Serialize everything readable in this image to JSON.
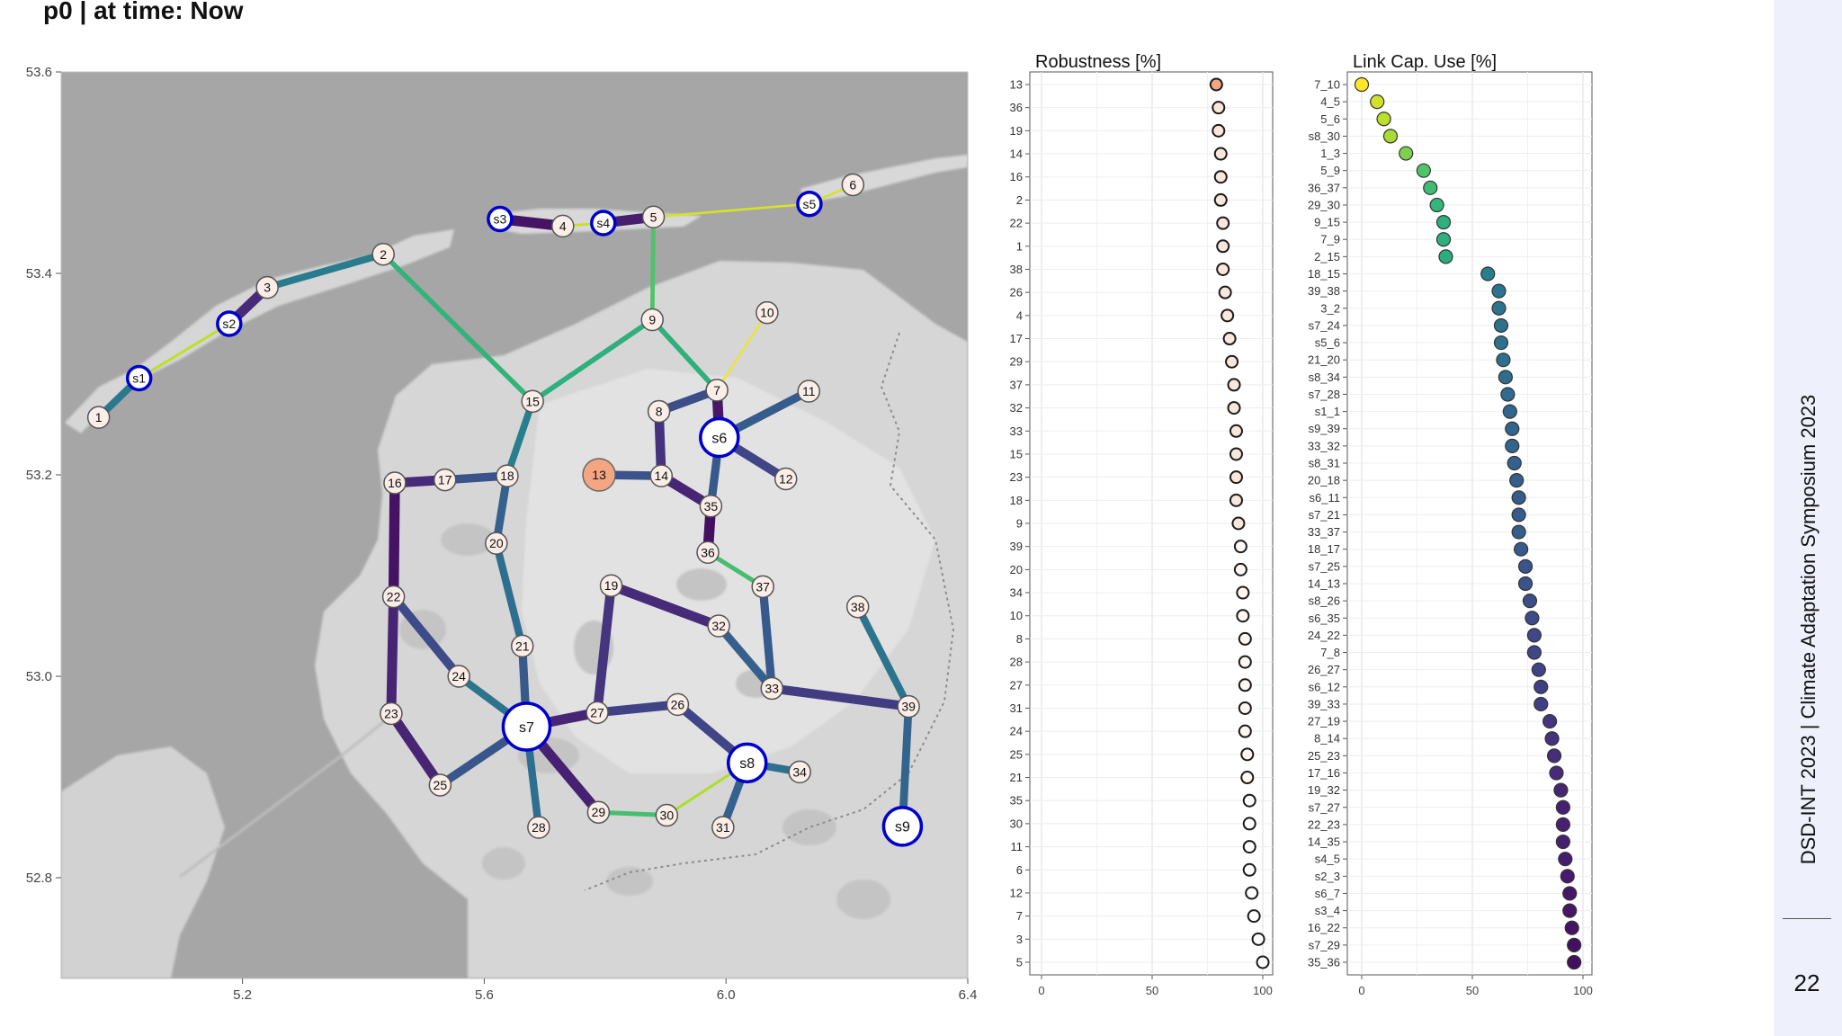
{
  "page": {
    "title": "p0 | at time: Now",
    "footer_text": "DSD-INT 2023 | Climate Adaptation Symposium 2023",
    "slide_number": "22"
  },
  "colors": {
    "water": "#a6a6a6",
    "land": "#d9d9d9",
    "station_stroke": "#0000cc",
    "highlight_node": "#f4a582"
  },
  "chart_data": [
    {
      "type": "network-map",
      "xlim": [
        4.9,
        6.4
      ],
      "ylim": [
        52.7,
        53.6
      ],
      "x_ticks": [
        5.2,
        5.6,
        6.0,
        6.4
      ],
      "y_ticks": [
        53.6,
        53.4,
        53.2,
        53.0,
        52.8
      ],
      "x_tick_labels": [
        "5.2",
        "5.6",
        "6.0",
        "6.4"
      ],
      "y_tick_labels": [
        "53.6",
        "53.4",
        "53.2",
        "53.0",
        "52.8"
      ],
      "nodes": [
        {
          "id": "1",
          "label": "1",
          "x": 4.962,
          "y": 53.257,
          "kind": "node"
        },
        {
          "id": "s1",
          "label": "s1",
          "x": 5.029,
          "y": 53.296,
          "kind": "station"
        },
        {
          "id": "s2",
          "label": "s2",
          "x": 5.178,
          "y": 53.35,
          "kind": "station"
        },
        {
          "id": "3",
          "label": "3",
          "x": 5.241,
          "y": 53.386,
          "kind": "node"
        },
        {
          "id": "2",
          "label": "2",
          "x": 5.433,
          "y": 53.419,
          "kind": "node"
        },
        {
          "id": "s3",
          "label": "s3",
          "x": 5.626,
          "y": 53.454,
          "kind": "station"
        },
        {
          "id": "4",
          "label": "4",
          "x": 5.73,
          "y": 53.447,
          "kind": "node"
        },
        {
          "id": "s4",
          "label": "s4",
          "x": 5.797,
          "y": 53.45,
          "kind": "station"
        },
        {
          "id": "5",
          "label": "5",
          "x": 5.88,
          "y": 53.456,
          "kind": "node"
        },
        {
          "id": "s5",
          "label": "s5",
          "x": 6.138,
          "y": 53.469,
          "kind": "station"
        },
        {
          "id": "6",
          "label": "6",
          "x": 6.21,
          "y": 53.488,
          "kind": "node"
        },
        {
          "id": "9",
          "label": "9",
          "x": 5.878,
          "y": 53.354,
          "kind": "node"
        },
        {
          "id": "10",
          "label": "10",
          "x": 6.068,
          "y": 53.361,
          "kind": "node"
        },
        {
          "id": "15",
          "label": "15",
          "x": 5.68,
          "y": 53.273,
          "kind": "node"
        },
        {
          "id": "7",
          "label": "7",
          "x": 5.985,
          "y": 53.284,
          "kind": "node"
        },
        {
          "id": "8",
          "label": "8",
          "x": 5.889,
          "y": 53.263,
          "kind": "node"
        },
        {
          "id": "11",
          "label": "11",
          "x": 6.137,
          "y": 53.283,
          "kind": "node"
        },
        {
          "id": "s6",
          "label": "s6",
          "x": 5.989,
          "y": 53.237,
          "kind": "station"
        },
        {
          "id": "12",
          "label": "12",
          "x": 6.099,
          "y": 53.196,
          "kind": "node"
        },
        {
          "id": "13",
          "label": "13",
          "x": 5.79,
          "y": 53.2,
          "kind": "highlight"
        },
        {
          "id": "14",
          "label": "14",
          "x": 5.893,
          "y": 53.199,
          "kind": "node"
        },
        {
          "id": "35",
          "label": "35",
          "x": 5.975,
          "y": 53.169,
          "kind": "node"
        },
        {
          "id": "36",
          "label": "36",
          "x": 5.97,
          "y": 53.123,
          "kind": "node"
        },
        {
          "id": "16",
          "label": "16",
          "x": 5.452,
          "y": 53.192,
          "kind": "node"
        },
        {
          "id": "17",
          "label": "17",
          "x": 5.535,
          "y": 53.195,
          "kind": "node"
        },
        {
          "id": "18",
          "label": "18",
          "x": 5.638,
          "y": 53.199,
          "kind": "node"
        },
        {
          "id": "20",
          "label": "20",
          "x": 5.62,
          "y": 53.132,
          "kind": "node"
        },
        {
          "id": "37",
          "label": "37",
          "x": 6.061,
          "y": 53.089,
          "kind": "node"
        },
        {
          "id": "38",
          "label": "38",
          "x": 6.218,
          "y": 53.069,
          "kind": "node"
        },
        {
          "id": "19",
          "label": "19",
          "x": 5.81,
          "y": 53.09,
          "kind": "node"
        },
        {
          "id": "22",
          "label": "22",
          "x": 5.45,
          "y": 53.079,
          "kind": "node"
        },
        {
          "id": "32",
          "label": "32",
          "x": 5.988,
          "y": 53.05,
          "kind": "node"
        },
        {
          "id": "21",
          "label": "21",
          "x": 5.663,
          "y": 53.03,
          "kind": "node"
        },
        {
          "id": "24",
          "label": "24",
          "x": 5.558,
          "y": 53.0,
          "kind": "node"
        },
        {
          "id": "33",
          "label": "33",
          "x": 6.076,
          "y": 52.988,
          "kind": "node"
        },
        {
          "id": "39",
          "label": "39",
          "x": 6.302,
          "y": 52.97,
          "kind": "node"
        },
        {
          "id": "23",
          "label": "23",
          "x": 5.446,
          "y": 52.963,
          "kind": "node"
        },
        {
          "id": "s7",
          "label": "s7",
          "x": 5.67,
          "y": 52.95,
          "kind": "station"
        },
        {
          "id": "27",
          "label": "27",
          "x": 5.787,
          "y": 52.964,
          "kind": "node"
        },
        {
          "id": "26",
          "label": "26",
          "x": 5.92,
          "y": 52.972,
          "kind": "node"
        },
        {
          "id": "s8",
          "label": "s8",
          "x": 6.035,
          "y": 52.914,
          "kind": "station"
        },
        {
          "id": "34",
          "label": "34",
          "x": 6.122,
          "y": 52.905,
          "kind": "node"
        },
        {
          "id": "25",
          "label": "25",
          "x": 5.527,
          "y": 52.892,
          "kind": "node"
        },
        {
          "id": "29",
          "label": "29",
          "x": 5.789,
          "y": 52.865,
          "kind": "node"
        },
        {
          "id": "30",
          "label": "30",
          "x": 5.902,
          "y": 52.862,
          "kind": "node"
        },
        {
          "id": "s9",
          "label": "s9",
          "x": 6.292,
          "y": 52.851,
          "kind": "station"
        },
        {
          "id": "28",
          "label": "28",
          "x": 5.69,
          "y": 52.85,
          "kind": "node"
        },
        {
          "id": "31",
          "label": "31",
          "x": 5.995,
          "y": 52.85,
          "kind": "node"
        }
      ],
      "links": [
        {
          "from": "1",
          "to": "s1",
          "use": 60
        },
        {
          "from": "s1",
          "to": "s2",
          "use": 10
        },
        {
          "from": "s2",
          "to": "3",
          "use": 88
        },
        {
          "from": "3",
          "to": "2",
          "use": 58
        },
        {
          "from": "2",
          "to": "15",
          "use": 35
        },
        {
          "from": "s3",
          "to": "4",
          "use": 95
        },
        {
          "from": "4",
          "to": "s4",
          "use": 8
        },
        {
          "from": "s4",
          "to": "5",
          "use": 92
        },
        {
          "from": "5",
          "to": "s5",
          "use": 6
        },
        {
          "from": "s5",
          "to": "6",
          "use": 6
        },
        {
          "from": "5",
          "to": "9",
          "use": 28
        },
        {
          "from": "9",
          "to": "15",
          "use": 37
        },
        {
          "from": "9",
          "to": "7",
          "use": 37
        },
        {
          "from": "7",
          "to": "10",
          "use": 2
        },
        {
          "from": "7",
          "to": "8",
          "use": 76
        },
        {
          "from": "7",
          "to": "s6",
          "use": 94
        },
        {
          "from": "s6",
          "to": "11",
          "use": 71
        },
        {
          "from": "s6",
          "to": "12",
          "use": 79
        },
        {
          "from": "s6",
          "to": "35",
          "use": 72
        },
        {
          "from": "8",
          "to": "14",
          "use": 86
        },
        {
          "from": "13",
          "to": "14",
          "use": 74
        },
        {
          "from": "14",
          "to": "35",
          "use": 90
        },
        {
          "from": "35",
          "to": "36",
          "use": 96
        },
        {
          "from": "36",
          "to": "37",
          "use": 30
        },
        {
          "from": "37",
          "to": "33",
          "use": 72
        },
        {
          "from": "15",
          "to": "18",
          "use": 57
        },
        {
          "from": "16",
          "to": "17",
          "use": 88
        },
        {
          "from": "17",
          "to": "18",
          "use": 74
        },
        {
          "from": "18",
          "to": "20",
          "use": 69
        },
        {
          "from": "20",
          "to": "21",
          "use": 64
        },
        {
          "from": "21",
          "to": "s7",
          "use": 72
        },
        {
          "from": "16",
          "to": "22",
          "use": 95
        },
        {
          "from": "22",
          "to": "23",
          "use": 90
        },
        {
          "from": "22",
          "to": "24",
          "use": 77
        },
        {
          "from": "24",
          "to": "s7",
          "use": 62
        },
        {
          "from": "23",
          "to": "25",
          "use": 90
        },
        {
          "from": "25",
          "to": "s7",
          "use": 73
        },
        {
          "from": "s7",
          "to": "27",
          "use": 90
        },
        {
          "from": "s7",
          "to": "28",
          "use": 64
        },
        {
          "from": "s7",
          "to": "29",
          "use": 91
        },
        {
          "from": "27",
          "to": "19",
          "use": 85
        },
        {
          "from": "27",
          "to": "26",
          "use": 80
        },
        {
          "from": "19",
          "to": "32",
          "use": 88
        },
        {
          "from": "32",
          "to": "33",
          "use": 70
        },
        {
          "from": "33",
          "to": "39",
          "use": 82
        },
        {
          "from": "38",
          "to": "39",
          "use": 62
        },
        {
          "from": "39",
          "to": "s9",
          "use": 68
        },
        {
          "from": "26",
          "to": "s8",
          "use": 79
        },
        {
          "from": "s8",
          "to": "34",
          "use": 64
        },
        {
          "from": "s8",
          "to": "31",
          "use": 69
        },
        {
          "from": "s8",
          "to": "30",
          "use": 12
        },
        {
          "from": "29",
          "to": "30",
          "use": 30
        }
      ]
    },
    {
      "type": "scatter",
      "title": "Robustness [%]",
      "xlim": [
        0,
        100
      ],
      "x_ticks": [
        0,
        50,
        100
      ],
      "categories": [
        "13",
        "36",
        "19",
        "14",
        "16",
        "2",
        "22",
        "1",
        "38",
        "26",
        "4",
        "17",
        "29",
        "37",
        "32",
        "33",
        "15",
        "23",
        "18",
        "9",
        "39",
        "20",
        "34",
        "10",
        "8",
        "28",
        "27",
        "31",
        "24",
        "25",
        "21",
        "35",
        "30",
        "11",
        "6",
        "12",
        "7",
        "3",
        "5"
      ],
      "values": [
        79,
        80,
        80,
        81,
        81,
        81,
        82,
        82,
        82,
        83,
        84,
        85,
        86,
        87,
        87,
        88,
        88,
        88,
        88,
        89,
        90,
        90,
        91,
        91,
        92,
        92,
        92,
        92,
        92,
        93,
        93,
        94,
        94,
        94,
        94,
        95,
        96,
        98,
        100
      ],
      "point_fill": [
        "#f4a582",
        "#fbe6dc",
        "#fbe6dc",
        "#fbe6dc",
        "#fbe6dc",
        "#fbe6dc",
        "#fbe6dc",
        "#fbe6dc",
        "#fbe6dc",
        "#fbe6dc",
        "#fbe6dc",
        "#fbe6dc",
        "#fbe6dc",
        "#fbe6dc",
        "#fbe6dc",
        "#fbe6dc",
        "#fbe6dc",
        "#fbe6dc",
        "#fbe6dc",
        "#fbe6dc",
        "#fff7f3",
        "#fff7f3",
        "#fff7f3",
        "#fff7f3",
        "#fff7f3",
        "#fff7f3",
        "#fff7f3",
        "#fff7f3",
        "#fff7f3",
        "#fff7f3",
        "#fff7f3",
        "#ffffff",
        "#ffffff",
        "#ffffff",
        "#ffffff",
        "#ffffff",
        "#ffffff",
        "#ffffff",
        "#ffffff"
      ]
    },
    {
      "type": "scatter",
      "title": "Link Cap. Use [%]",
      "xlim": [
        0,
        100
      ],
      "x_ticks": [
        0,
        50,
        100
      ],
      "categories": [
        "7_10",
        "4_5",
        "5_6",
        "s8_30",
        "1_3",
        "5_9",
        "36_37",
        "29_30",
        "9_15",
        "7_9",
        "2_15",
        "18_15",
        "39_38",
        "3_2",
        "s7_24",
        "s5_6",
        "21_20",
        "s8_34",
        "s7_28",
        "s1_1",
        "s9_39",
        "33_32",
        "s8_31",
        "20_18",
        "s6_11",
        "s7_21",
        "33_37",
        "18_17",
        "s7_25",
        "14_13",
        "s8_26",
        "s6_35",
        "24_22",
        "7_8",
        "26_27",
        "s6_12",
        "39_33",
        "27_19",
        "8_14",
        "25_23",
        "17_16",
        "19_32",
        "s7_27",
        "22_23",
        "14_35",
        "s4_5",
        "s2_3",
        "s6_7",
        "s3_4",
        "16_22",
        "s7_29",
        "35_36"
      ],
      "values": [
        0,
        7,
        10,
        13,
        20,
        28,
        31,
        34,
        37,
        37,
        38,
        57,
        62,
        62,
        63,
        63,
        64,
        65,
        66,
        67,
        68,
        68,
        69,
        70,
        71,
        71,
        71,
        72,
        74,
        74,
        76,
        77,
        78,
        78,
        80,
        81,
        81,
        85,
        86,
        87,
        88,
        90,
        91,
        91,
        91,
        92,
        93,
        94,
        94,
        95,
        96,
        96
      ]
    }
  ]
}
